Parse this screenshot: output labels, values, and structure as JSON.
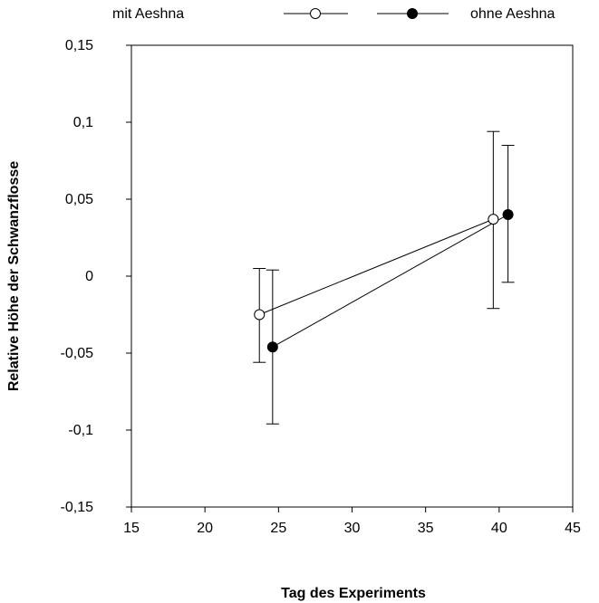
{
  "chart_data": {
    "type": "line",
    "title": "",
    "xlabel": "Tag des Experiments",
    "ylabel": "Relative Höhe der Schwanzflosse",
    "xlim": [
      15,
      45
    ],
    "ylim": [
      -0.15,
      0.15
    ],
    "x_ticks": [
      15,
      20,
      25,
      30,
      35,
      40,
      45
    ],
    "x_tick_labels": [
      "15",
      "20",
      "25",
      "30",
      "35",
      "40",
      "45"
    ],
    "y_ticks": [
      0.15,
      0.1,
      0.05,
      0,
      -0.05,
      -0.1,
      -0.15
    ],
    "y_tick_labels": [
      "0,15",
      "0,1",
      "0,05",
      "0",
      "-0,05",
      "-0,1",
      "-0,15"
    ],
    "grid": false,
    "legend_position": "top",
    "series": [
      {
        "name": "mit Aeshna",
        "marker": "open-circle",
        "x": [
          23.7,
          39.6
        ],
        "y": [
          -0.025,
          0.037
        ],
        "err_low": [
          -0.056,
          -0.021
        ],
        "err_high": [
          0.005,
          0.094
        ]
      },
      {
        "name": "ohne Aeshna",
        "marker": "filled-circle",
        "x": [
          24.6,
          40.6
        ],
        "y": [
          -0.046,
          0.04
        ],
        "err_low": [
          -0.096,
          -0.004
        ],
        "err_high": [
          0.004,
          0.085
        ]
      }
    ]
  }
}
